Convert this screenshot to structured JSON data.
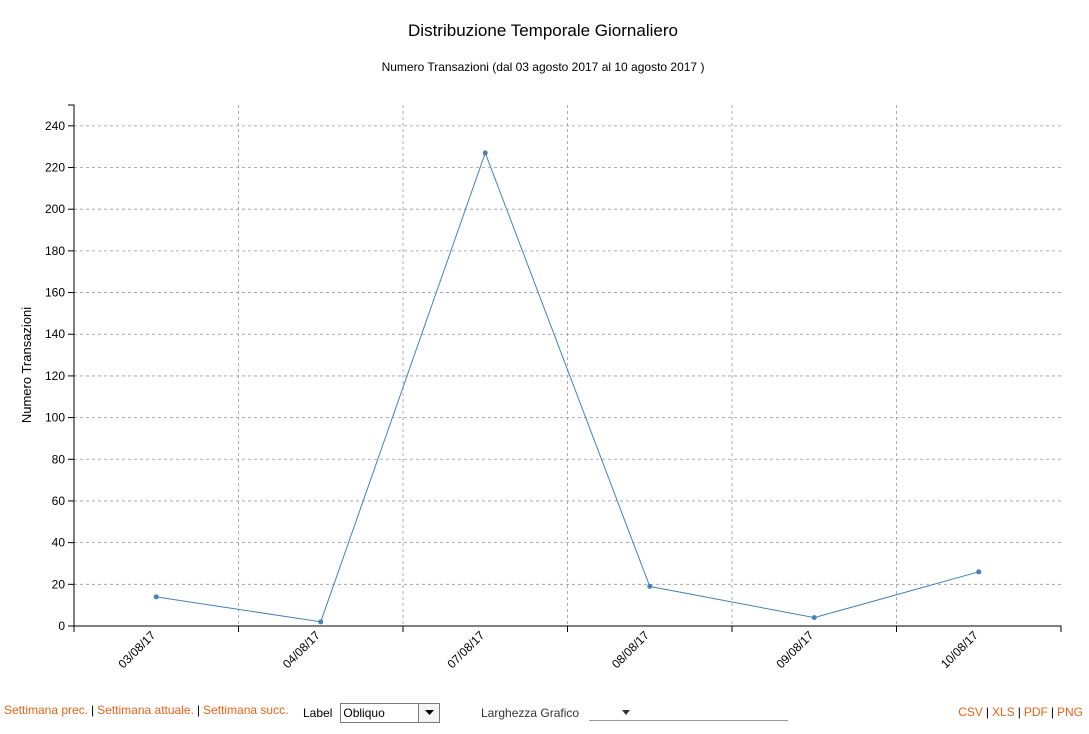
{
  "chart_data": {
    "type": "line",
    "title": "Distribuzione Temporale Giornaliero",
    "subtitle": "Numero Transazioni (dal 03 agosto 2017 al 10 agosto 2017 )",
    "ylabel": "Numero Transazioni",
    "xlabel": "",
    "categories": [
      "03/08/17",
      "04/08/17",
      "07/08/17",
      "08/08/17",
      "09/08/17",
      "10/08/17"
    ],
    "series": [
      {
        "values": [
          14,
          2,
          227,
          19,
          4,
          26
        ],
        "color": "#4682b4"
      }
    ],
    "ylim": [
      0,
      250
    ],
    "yticks": [
      0,
      20,
      40,
      60,
      80,
      100,
      120,
      140,
      160,
      180,
      200,
      220,
      240
    ],
    "grid": true,
    "x_label_orientation": "rotated"
  },
  "controls": {
    "prev_week": "Settimana prec.",
    "current_week": "Settimana attuale.",
    "next_week": "Settimana succ.",
    "separator": "|",
    "label_text": "Label",
    "label_select_value": "Obliquo",
    "width_text": "Larghezza Grafico",
    "export": [
      "CSV",
      "XLS",
      "PDF",
      "PNG"
    ]
  },
  "colors": {
    "line": "#4682b4",
    "link": "#e8631a",
    "grid": "#999999"
  },
  "icons": {
    "select_arrow": "chevron-down-icon",
    "width_caret": "caret-down-icon"
  }
}
